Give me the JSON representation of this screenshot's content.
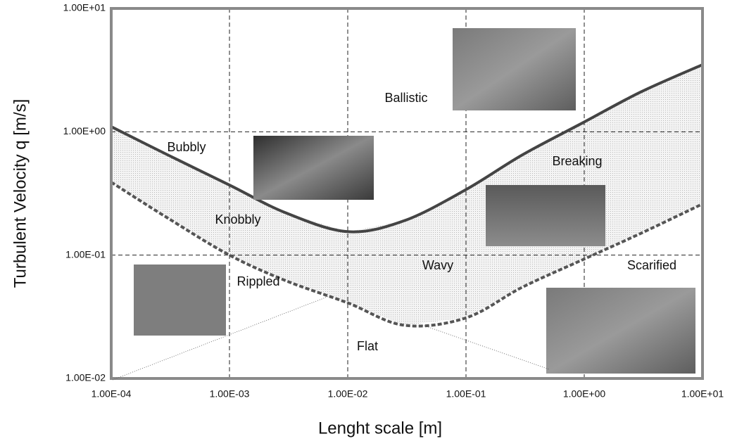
{
  "chart_data": {
    "type": "line",
    "xlabel": "Lenght scale [m]",
    "ylabel": "Turbulent Velocity q [m/s]",
    "xscale": "log",
    "yscale": "log",
    "grid": true,
    "xlim": [
      0.0001,
      10
    ],
    "ylim": [
      0.01,
      10
    ],
    "xticks": [
      {
        "value": 0.0001,
        "label": "1.00E-04"
      },
      {
        "value": 0.001,
        "label": "1.00E-03"
      },
      {
        "value": 0.01,
        "label": "1.00E-02"
      },
      {
        "value": 0.1,
        "label": "1.00E-01"
      },
      {
        "value": 1,
        "label": "1.00E+00"
      },
      {
        "value": 10,
        "label": "1.00E+01"
      }
    ],
    "yticks": [
      {
        "value": 0.01,
        "label": "1.00E-02"
      },
      {
        "value": 0.1,
        "label": "1.00E-01"
      },
      {
        "value": 1,
        "label": "1.00E+00"
      },
      {
        "value": 10,
        "label": "1.00E+01"
      }
    ],
    "x": [
      0.0001,
      0.0003,
      0.001,
      0.003,
      0.01,
      0.03,
      0.1,
      0.3,
      1,
      3,
      10
    ],
    "series": [
      {
        "color": "#444444",
        "style": "solid",
        "values": [
          1.1,
          0.65,
          0.37,
          0.22,
          0.155,
          0.19,
          0.34,
          0.65,
          1.2,
          2.1,
          3.5
        ]
      },
      {
        "color": "#555555",
        "style": "dashed",
        "values": [
          0.39,
          0.2,
          0.1,
          0.062,
          0.041,
          0.027,
          0.031,
          0.055,
          0.093,
          0.15,
          0.26
        ]
      }
    ],
    "annotations": [
      "Ballistic",
      "Bubbly",
      "Breaking",
      "Knobbly",
      "Wavy",
      "Scarified",
      "Rippled",
      "Flat"
    ]
  }
}
